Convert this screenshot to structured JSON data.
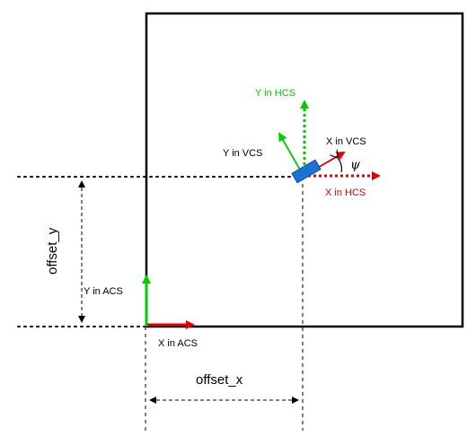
{
  "labels": {
    "y_hcs": "Y in HCS",
    "x_vcs": "X in VCS",
    "y_vcs": "Y in VCS",
    "x_hcs": "X in HCS",
    "psi": "ψ",
    "offset_y": "offset_y",
    "y_acs": "Y in ACS",
    "x_acs": "X in ACS",
    "offset_x": "offset_x"
  },
  "colors": {
    "red": "#e00000",
    "green": "#00cc00",
    "vehicle_fill": "#1a73d9",
    "vehicle_stroke": "#0d47a1",
    "frame": "#000000"
  }
}
